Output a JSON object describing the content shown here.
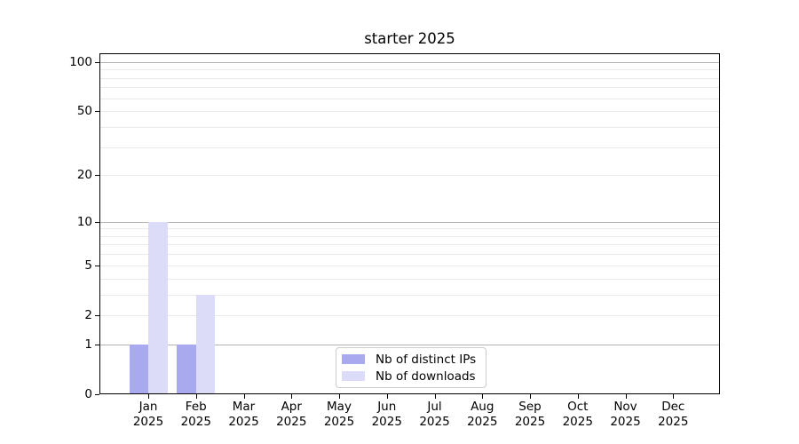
{
  "title": "starter 2025",
  "colors": {
    "bar_distinct_ips": "#a9a9f0",
    "bar_downloads": "#dcdcf8",
    "grid_major": "#b2b2b2",
    "grid_minor": "#e9e9e9",
    "spine": "#000000",
    "text": "#000000",
    "legend_border": "#cccccc",
    "background": "#ffffff"
  },
  "chart_data": {
    "type": "bar",
    "title": "starter 2025",
    "categories": [
      "Jan",
      "Feb",
      "Mar",
      "Apr",
      "May",
      "Jun",
      "Jul",
      "Aug",
      "Sep",
      "Oct",
      "Nov",
      "Dec"
    ],
    "x_year_label": "2025",
    "series": [
      {
        "name": "Nb of distinct IPs",
        "color": "#a9a9f0",
        "values": [
          1,
          1,
          0,
          0,
          0,
          0,
          0,
          0,
          0,
          0,
          0,
          0
        ]
      },
      {
        "name": "Nb of downloads",
        "color": "#dcdcf8",
        "values": [
          10,
          3,
          0,
          0,
          0,
          0,
          0,
          0,
          0,
          0,
          0,
          0
        ]
      }
    ],
    "ylabel": "",
    "xlabel": "",
    "yscale": "log1p",
    "ylim": [
      0,
      113
    ],
    "y_tick_values": [
      0,
      1,
      2,
      5,
      10,
      20,
      50,
      100
    ],
    "y_tick_labels": [
      "0",
      "1",
      "2",
      "5",
      "10",
      "20",
      "50",
      "100"
    ],
    "y_major_gridlines": [
      1,
      10,
      100
    ],
    "y_minor_gridlines": [
      2,
      3,
      4,
      5,
      6,
      7,
      8,
      9,
      20,
      30,
      40,
      50,
      60,
      70,
      80,
      90
    ],
    "grid": "on",
    "legend_position": "lower center, inside axes"
  }
}
